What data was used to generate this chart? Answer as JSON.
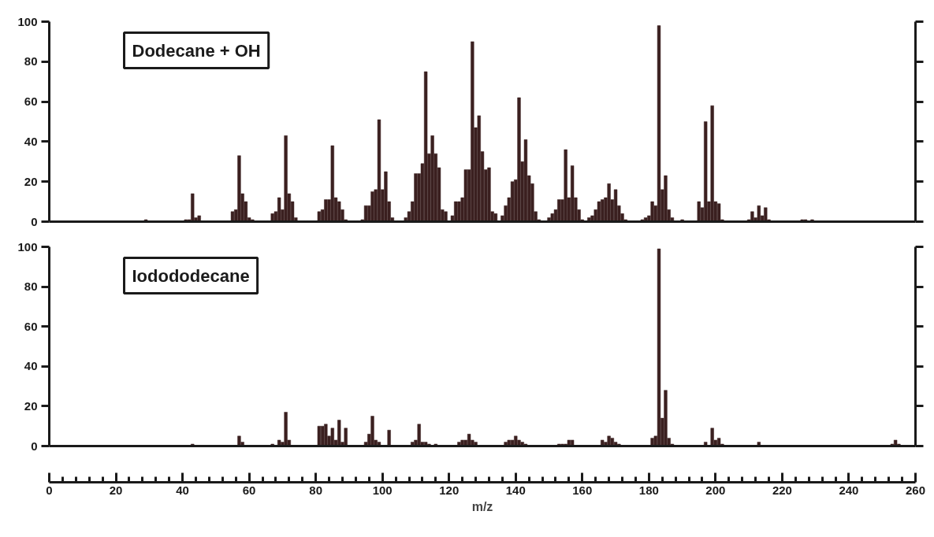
{
  "chart_data": [
    {
      "type": "bar",
      "title": "Dodecane + OH",
      "color": "#3b2020",
      "x": [
        29,
        41,
        42,
        43,
        44,
        45,
        55,
        56,
        57,
        58,
        59,
        60,
        61,
        67,
        68,
        69,
        70,
        71,
        72,
        73,
        74,
        81,
        82,
        83,
        84,
        85,
        86,
        87,
        88,
        89,
        94,
        95,
        96,
        97,
        98,
        99,
        100,
        101,
        102,
        103,
        107,
        108,
        109,
        110,
        111,
        112,
        113,
        114,
        115,
        116,
        117,
        118,
        119,
        121,
        122,
        123,
        124,
        125,
        126,
        127,
        128,
        129,
        130,
        131,
        132,
        133,
        134,
        136,
        137,
        138,
        139,
        140,
        141,
        142,
        143,
        144,
        145,
        146,
        147,
        150,
        151,
        152,
        153,
        154,
        155,
        156,
        157,
        158,
        159,
        160,
        162,
        163,
        164,
        165,
        166,
        167,
        168,
        169,
        170,
        171,
        172,
        173,
        178,
        179,
        180,
        181,
        182,
        183,
        184,
        185,
        186,
        187,
        190,
        195,
        196,
        197,
        198,
        199,
        200,
        201,
        202,
        210,
        211,
        212,
        213,
        214,
        215,
        216,
        226,
        227,
        229
      ],
      "values": [
        1,
        1,
        1,
        14,
        2,
        3,
        5,
        6,
        33,
        14,
        10,
        2,
        1,
        4,
        5,
        12,
        6,
        43,
        14,
        10,
        2,
        5,
        6,
        11,
        11,
        38,
        12,
        10,
        6,
        1,
        1,
        8,
        8,
        15,
        16,
        51,
        16,
        25,
        10,
        2,
        2,
        5,
        10,
        24,
        24,
        29,
        75,
        34,
        43,
        34,
        27,
        6,
        5,
        3,
        10,
        10,
        12,
        26,
        26,
        90,
        47,
        53,
        35,
        26,
        27,
        5,
        4,
        3,
        8,
        12,
        20,
        21,
        62,
        30,
        41,
        23,
        19,
        5,
        1,
        2,
        4,
        6,
        11,
        11,
        36,
        12,
        28,
        12,
        6,
        1,
        2,
        3,
        6,
        10,
        11,
        12,
        19,
        11,
        16,
        8,
        4,
        1,
        1,
        2,
        3,
        10,
        8,
        98,
        16,
        23,
        6,
        2,
        1,
        10,
        7,
        50,
        10,
        58,
        10,
        9,
        1,
        1,
        5,
        2,
        8,
        3,
        7,
        1,
        1,
        1,
        1
      ],
      "xlim": [
        0,
        260
      ],
      "ylim": [
        0,
        100
      ],
      "yticks": [
        0,
        20,
        40,
        60,
        80,
        100
      ],
      "tick_labels": "y",
      "grid": false
    },
    {
      "type": "bar",
      "title": "Iodododecane",
      "color": "#3b2020",
      "x": [
        43,
        57,
        58,
        67,
        69,
        70,
        71,
        72,
        81,
        82,
        83,
        84,
        85,
        86,
        87,
        88,
        89,
        95,
        96,
        97,
        98,
        99,
        102,
        109,
        110,
        111,
        112,
        113,
        114,
        116,
        123,
        124,
        125,
        126,
        127,
        128,
        137,
        138,
        139,
        140,
        141,
        142,
        143,
        153,
        154,
        155,
        156,
        157,
        166,
        167,
        168,
        169,
        170,
        171,
        181,
        182,
        183,
        184,
        185,
        186,
        187,
        197,
        199,
        200,
        201,
        202,
        213,
        253,
        254,
        255
      ],
      "values": [
        1,
        5,
        2,
        1,
        3,
        2,
        17,
        3,
        10,
        10,
        11,
        5,
        9,
        3,
        13,
        2,
        9,
        2,
        6,
        15,
        3,
        2,
        8,
        2,
        3,
        11,
        2,
        2,
        1,
        1,
        2,
        3,
        3,
        6,
        3,
        2,
        2,
        3,
        3,
        5,
        3,
        2,
        1,
        1,
        1,
        1,
        3,
        3,
        3,
        2,
        5,
        4,
        2,
        1,
        4,
        5,
        99,
        14,
        28,
        4,
        1,
        2,
        9,
        3,
        4,
        1,
        2,
        1,
        3,
        1
      ],
      "xlim": [
        0,
        260
      ],
      "ylim": [
        0,
        100
      ],
      "yticks": [
        0,
        20,
        40,
        60,
        80,
        100
      ],
      "xticks": [
        0,
        20,
        40,
        60,
        80,
        100,
        120,
        140,
        160,
        180,
        200,
        220,
        240,
        260
      ],
      "xlabel": "m/z",
      "grid": false
    }
  ]
}
